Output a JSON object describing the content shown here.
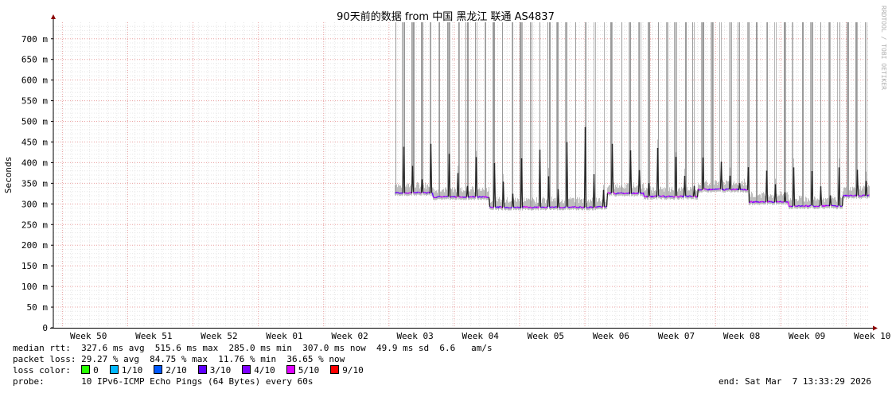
{
  "title": "90天前的数据 from  中国 黑龙江 联通 AS4837",
  "ylabel": "Seconds",
  "watermark": "RRDTOOL / TOBI OETIKER",
  "stats": {
    "median_rtt": "median rtt:  327.6 ms avg  515.6 ms max  285.0 ms min  307.0 ms now  49.9 ms sd  6.6   am/s",
    "packet_loss": "packet loss: 29.27 % avg  84.75 % max  11.76 % min  36.65 % now",
    "loss_color_label": "loss color:",
    "probe": "probe:       10 IPv6-ICMP Echo Pings (64 Bytes) every 60s",
    "end": "end: Sat Mar  7 13:33:29 2026"
  },
  "loss_colors": [
    {
      "label": "0",
      "color": "#26ff00"
    },
    {
      "label": "1/10",
      "color": "#00b8ff"
    },
    {
      "label": "2/10",
      "color": "#0059ff"
    },
    {
      "label": "3/10",
      "color": "#5e00ff"
    },
    {
      "label": "4/10",
      "color": "#7e00ff"
    },
    {
      "label": "5/10",
      "color": "#dd00ff"
    },
    {
      "label": "9/10",
      "color": "#ff0000"
    }
  ],
  "chart_data": {
    "type": "area",
    "y_unit": "ms",
    "ylim": [
      0,
      740
    ],
    "yticks": [
      {
        "v": 0,
        "label": "0"
      },
      {
        "v": 50,
        "label": "50 m"
      },
      {
        "v": 100,
        "label": "100 m"
      },
      {
        "v": 150,
        "label": "150 m"
      },
      {
        "v": 200,
        "label": "200 m"
      },
      {
        "v": 250,
        "label": "250 m"
      },
      {
        "v": 300,
        "label": "300 m"
      },
      {
        "v": 350,
        "label": "350 m"
      },
      {
        "v": 400,
        "label": "400 m"
      },
      {
        "v": 450,
        "label": "450 m"
      },
      {
        "v": 500,
        "label": "500 m"
      },
      {
        "v": 550,
        "label": "550 m"
      },
      {
        "v": 600,
        "label": "600 m"
      },
      {
        "v": 650,
        "label": "650 m"
      },
      {
        "v": 700,
        "label": "700 m"
      }
    ],
    "xlim_days": [
      0,
      90
    ],
    "weeks": [
      "Week 50",
      "Week 51",
      "Week 52",
      "Week 01",
      "Week 02",
      "Week 03",
      "Week 04",
      "Week 05",
      "Week 06",
      "Week 07",
      "Week 08",
      "Week 09",
      "Week 10"
    ],
    "data_start_day": 37.6,
    "baseline_segments": [
      {
        "from": 37.6,
        "to": 41.8,
        "median": 327
      },
      {
        "from": 41.8,
        "to": 48.0,
        "median": 317
      },
      {
        "from": 48.0,
        "to": 61.0,
        "median": 292
      },
      {
        "from": 61.0,
        "to": 65.0,
        "median": 326
      },
      {
        "from": 65.0,
        "to": 71.0,
        "median": 318
      },
      {
        "from": 71.0,
        "to": 76.5,
        "median": 335
      },
      {
        "from": 76.5,
        "to": 81.0,
        "median": 305
      },
      {
        "from": 81.0,
        "to": 87.0,
        "median": 295
      },
      {
        "from": 87.0,
        "to": 90.0,
        "median": 320
      }
    ],
    "peaks_ms": [
      455,
      460,
      448,
      450,
      447,
      437,
      435,
      418,
      417,
      440,
      415,
      418,
      432,
      415,
      448,
      452,
      445,
      450,
      456,
      493,
      515,
      455,
      462,
      450,
      448,
      445,
      440,
      435,
      440,
      432,
      428,
      420,
      420,
      415,
      418,
      412,
      403,
      392
    ]
  }
}
